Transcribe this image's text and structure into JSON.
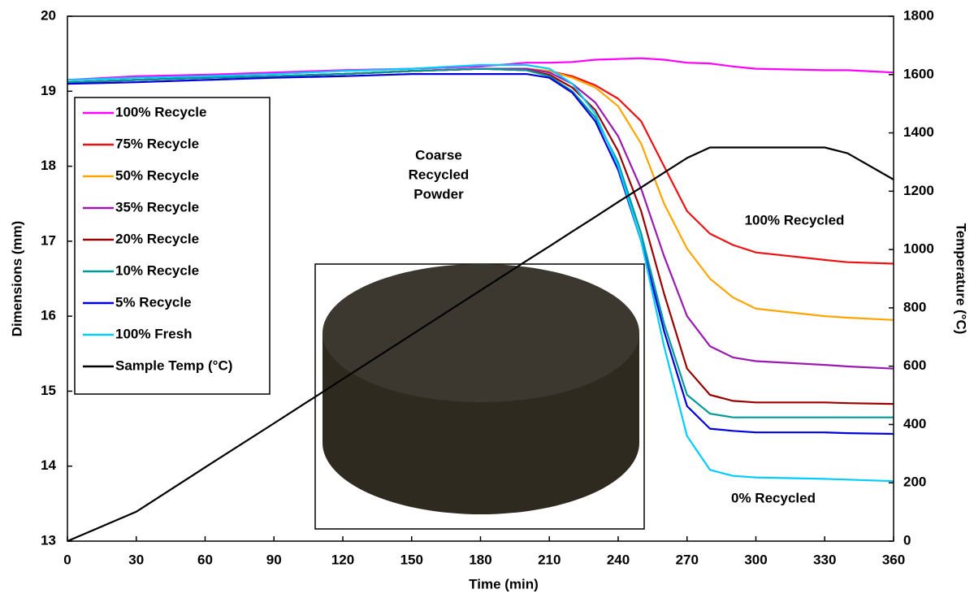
{
  "chart_data": {
    "type": "line",
    "x_label": "Time (min)",
    "y_label": "Dimensions (mm)",
    "y2_label": "Temperature (°C)",
    "x": [
      0,
      30,
      60,
      90,
      120,
      150,
      180,
      200,
      210,
      220,
      230,
      240,
      250,
      260,
      270,
      280,
      290,
      300,
      330,
      340,
      360
    ],
    "xlim": [
      0,
      360
    ],
    "xticks": [
      0,
      30,
      60,
      90,
      120,
      150,
      180,
      210,
      240,
      270,
      300,
      330,
      360
    ],
    "ylim": [
      13,
      20
    ],
    "yticks": [
      13,
      14,
      15,
      16,
      17,
      18,
      19,
      20
    ],
    "y2lim": [
      0,
      1800
    ],
    "y2ticks": [
      0,
      200,
      400,
      600,
      800,
      1000,
      1200,
      1400,
      1600,
      1800
    ],
    "grid": false,
    "legend": "upper left",
    "annotations": [
      [
        "Coarse",
        "Recycled",
        "Powder"
      ],
      "100% Recycled",
      "0% Recycled"
    ],
    "series": [
      {
        "name": "100% Recycle",
        "color": "#ff00ff",
        "values": [
          19.15,
          19.2,
          19.22,
          19.25,
          19.28,
          19.3,
          19.33,
          19.38,
          19.38,
          19.39,
          19.42,
          19.43,
          19.44,
          19.42,
          19.38,
          19.37,
          19.33,
          19.3,
          19.28,
          19.28,
          19.25
        ]
      },
      {
        "name": "75% Recycle",
        "color": "#ee1111",
        "values": [
          19.12,
          19.15,
          19.18,
          19.2,
          19.23,
          19.27,
          19.3,
          19.3,
          19.27,
          19.2,
          19.08,
          18.9,
          18.6,
          18.0,
          17.4,
          17.1,
          16.95,
          16.85,
          16.75,
          16.72,
          16.7
        ]
      },
      {
        "name": "50% Recycle",
        "color": "#ffa500",
        "values": [
          19.12,
          19.15,
          19.18,
          19.2,
          19.23,
          19.27,
          19.3,
          19.3,
          19.27,
          19.18,
          19.05,
          18.8,
          18.3,
          17.5,
          16.9,
          16.5,
          16.25,
          16.1,
          16.0,
          15.98,
          15.95
        ]
      },
      {
        "name": "35% Recycle",
        "color": "#9a1ab0",
        "values": [
          19.12,
          19.15,
          19.18,
          19.2,
          19.23,
          19.27,
          19.3,
          19.3,
          19.25,
          19.1,
          18.85,
          18.4,
          17.7,
          16.8,
          16.0,
          15.6,
          15.45,
          15.4,
          15.35,
          15.33,
          15.3
        ]
      },
      {
        "name": "20% Recycle",
        "color": "#990000",
        "values": [
          19.12,
          19.15,
          19.18,
          19.2,
          19.23,
          19.27,
          19.3,
          19.28,
          19.22,
          19.05,
          18.75,
          18.2,
          17.4,
          16.3,
          15.3,
          14.95,
          14.87,
          14.85,
          14.85,
          14.84,
          14.83
        ]
      },
      {
        "name": "10% Recycle",
        "color": "#009999",
        "values": [
          19.12,
          19.15,
          19.18,
          19.2,
          19.23,
          19.27,
          19.3,
          19.28,
          19.2,
          19.0,
          18.65,
          18.05,
          17.1,
          15.9,
          14.95,
          14.7,
          14.65,
          14.65,
          14.65,
          14.65,
          14.65
        ]
      },
      {
        "name": "5% Recycle",
        "color": "#0000dd",
        "values": [
          19.1,
          19.12,
          19.15,
          19.18,
          19.2,
          19.23,
          19.23,
          19.23,
          19.18,
          18.98,
          18.6,
          17.95,
          17.0,
          15.8,
          14.8,
          14.5,
          14.47,
          14.45,
          14.45,
          14.44,
          14.43
        ]
      },
      {
        "name": "100% Fresh",
        "color": "#00ccff",
        "values": [
          19.15,
          19.18,
          19.2,
          19.23,
          19.27,
          19.3,
          19.35,
          19.35,
          19.3,
          19.1,
          18.7,
          18.0,
          17.0,
          15.6,
          14.4,
          13.95,
          13.87,
          13.85,
          13.83,
          13.82,
          13.8
        ]
      },
      {
        "name": "Sample Temp (°C)",
        "color": "#000000",
        "axis": "y2",
        "values": [
          0,
          101,
          253,
          404,
          556,
          708,
          860,
          961,
          1011,
          1062,
          1112,
          1163,
          1213,
          1264,
          1314,
          1350,
          1350,
          1350,
          1350,
          1330,
          1240
        ]
      }
    ]
  }
}
